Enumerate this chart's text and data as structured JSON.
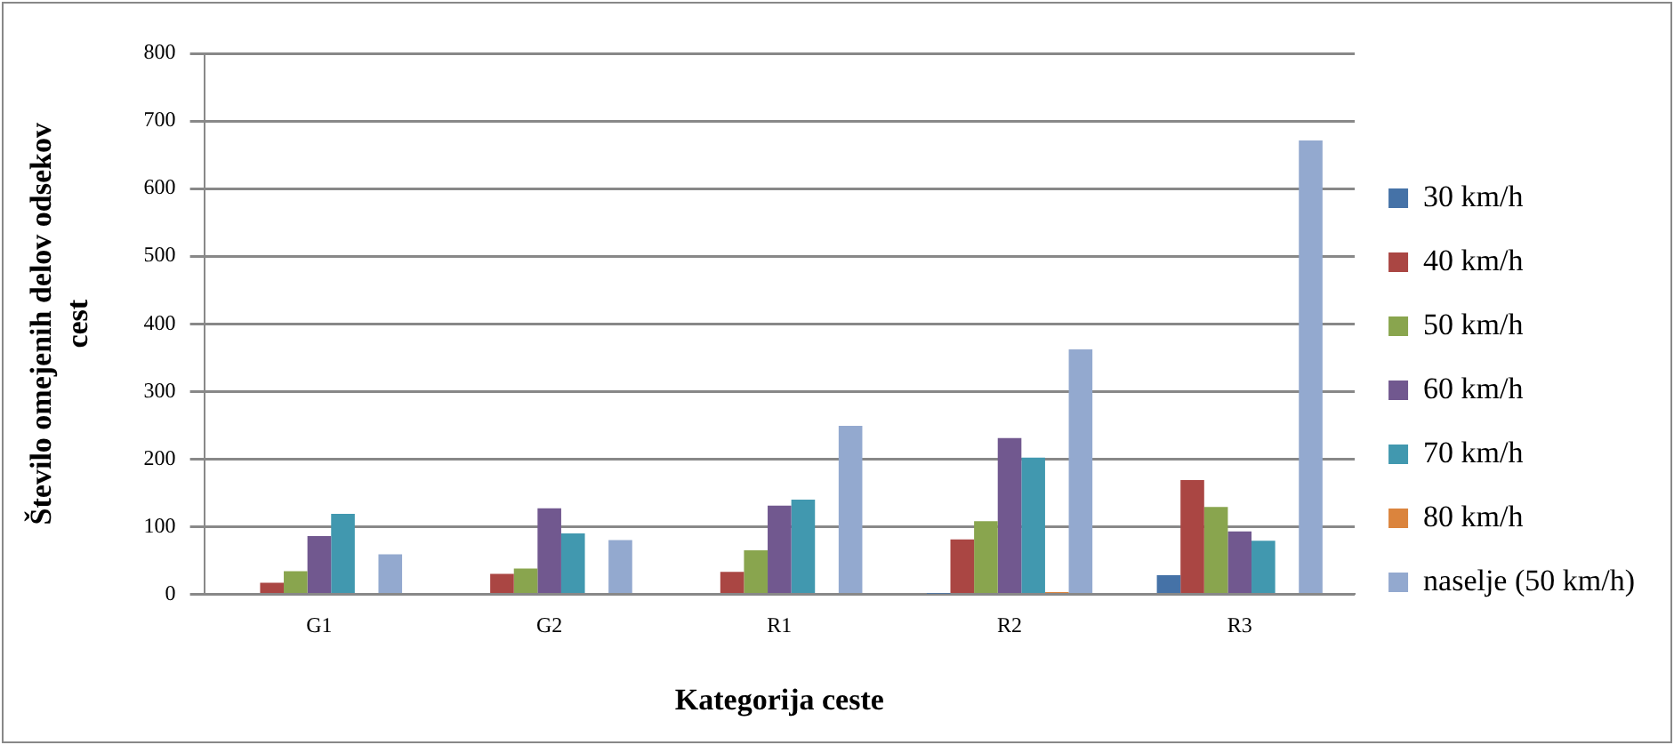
{
  "chart_data": {
    "type": "bar",
    "xlabel": "Kategorija ceste",
    "ylabel": "Število omejenih delov odsekov cest",
    "categories": [
      "G1",
      "G2",
      "R1",
      "R2",
      "R3"
    ],
    "series": [
      {
        "name": "30 km/h",
        "color": "#4572a7",
        "values": [
          0,
          0,
          0,
          1,
          28
        ]
      },
      {
        "name": "40 km/h",
        "color": "#aa4643",
        "values": [
          17,
          30,
          33,
          81,
          169
        ]
      },
      {
        "name": "50 km/h",
        "color": "#89a54e",
        "values": [
          34,
          38,
          65,
          108,
          129
        ]
      },
      {
        "name": "60 km/h",
        "color": "#71588f",
        "values": [
          86,
          127,
          131,
          231,
          93
        ]
      },
      {
        "name": "70 km/h",
        "color": "#4198af",
        "values": [
          119,
          90,
          140,
          202,
          79
        ]
      },
      {
        "name": "80 km/h",
        "color": "#db843d",
        "values": [
          0,
          0,
          0,
          3,
          0
        ]
      },
      {
        "name": "naselje (50 km/h)",
        "color": "#93a9cf",
        "values": [
          59,
          80,
          249,
          362,
          671
        ]
      }
    ],
    "ylim": [
      0,
      800
    ],
    "yticks": [
      0,
      100,
      200,
      300,
      400,
      500,
      600,
      700,
      800
    ],
    "grid": "y",
    "legend": "right"
  }
}
